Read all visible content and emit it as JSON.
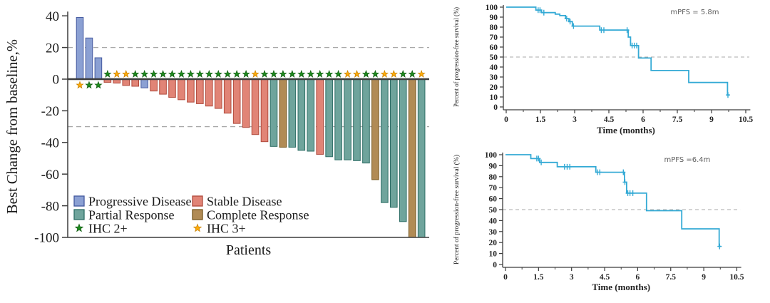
{
  "figure_background": "#ffffff",
  "colors": {
    "PD": {
      "fill": "#8BA0D3",
      "stroke": "#44599F"
    },
    "SD": {
      "fill": "#E18476",
      "stroke": "#B04A3C"
    },
    "PR": {
      "fill": "#6FA49C",
      "stroke": "#2E6E66"
    },
    "CR": {
      "fill": "#B18B55",
      "stroke": "#77571E"
    },
    "IHC2": {
      "fill": "#1E8C1E",
      "stroke": "#145F14"
    },
    "IHC3": {
      "fill": "#FFAD0A",
      "stroke": "#C98200"
    },
    "km_line": "#34AAD5",
    "dashed": "#A8A8A8",
    "axis": "#3C3C3C",
    "annotation_text": "#5E5E5E"
  },
  "chart_data": [
    {
      "type": "bar",
      "name": "waterfall",
      "xlabel": "Patients",
      "ylabel": "Best Change from baseline,%",
      "ylim": [
        -100,
        40
      ],
      "yticks": [
        40,
        20,
        0,
        -20,
        -40,
        -60,
        -80,
        -100
      ],
      "reference_lines": [
        20,
        -30
      ],
      "legend": [
        {
          "label": "Progressive Disease",
          "key": "PD",
          "marker": "box"
        },
        {
          "label": "Stable Disease",
          "key": "SD",
          "marker": "box"
        },
        {
          "label": "Partial Response",
          "key": "PR",
          "marker": "box"
        },
        {
          "label": "Complete Response",
          "key": "CR",
          "marker": "box"
        },
        {
          "label": "IHC 2+",
          "key": "IHC2",
          "marker": "star"
        },
        {
          "label": "IHC 3+",
          "key": "IHC3",
          "marker": "star"
        }
      ],
      "bars": [
        {
          "value": 39,
          "response": "PD",
          "ihc": "IHC3"
        },
        {
          "value": 26,
          "response": "PD",
          "ihc": "IHC2"
        },
        {
          "value": 13.5,
          "response": "PD",
          "ihc": "IHC2"
        },
        {
          "value": -2,
          "response": "SD",
          "ihc": "IHC2"
        },
        {
          "value": -2.5,
          "response": "SD",
          "ihc": "IHC3"
        },
        {
          "value": -4,
          "response": "SD",
          "ihc": "IHC3"
        },
        {
          "value": -4.5,
          "response": "SD",
          "ihc": "IHC2"
        },
        {
          "value": -5.5,
          "response": "PD",
          "ihc": "IHC2"
        },
        {
          "value": -7.5,
          "response": "SD",
          "ihc": "IHC2"
        },
        {
          "value": -9.5,
          "response": "SD",
          "ihc": "IHC2"
        },
        {
          "value": -11.5,
          "response": "SD",
          "ihc": "IHC2"
        },
        {
          "value": -13,
          "response": "SD",
          "ihc": "IHC2"
        },
        {
          "value": -14.5,
          "response": "SD",
          "ihc": "IHC2"
        },
        {
          "value": -15.5,
          "response": "SD",
          "ihc": "IHC2"
        },
        {
          "value": -17,
          "response": "SD",
          "ihc": "IHC2"
        },
        {
          "value": -18.5,
          "response": "SD",
          "ihc": "IHC2"
        },
        {
          "value": -21.5,
          "response": "SD",
          "ihc": "IHC2"
        },
        {
          "value": -28,
          "response": "SD",
          "ihc": "IHC2"
        },
        {
          "value": -30.5,
          "response": "SD",
          "ihc": "IHC2"
        },
        {
          "value": -35,
          "response": "SD",
          "ihc": "IHC3"
        },
        {
          "value": -39.5,
          "response": "SD",
          "ihc": "IHC2"
        },
        {
          "value": -42.5,
          "response": "PR",
          "ihc": "IHC2"
        },
        {
          "value": -43,
          "response": "CR",
          "ihc": "IHC2"
        },
        {
          "value": -43,
          "response": "PR",
          "ihc": "IHC2"
        },
        {
          "value": -45,
          "response": "PR",
          "ihc": "IHC2"
        },
        {
          "value": -45.5,
          "response": "PR",
          "ihc": "IHC2"
        },
        {
          "value": -47.5,
          "response": "SD",
          "ihc": "IHC2"
        },
        {
          "value": -49,
          "response": "PR",
          "ihc": "IHC2"
        },
        {
          "value": -51,
          "response": "PR",
          "ihc": "IHC2"
        },
        {
          "value": -51,
          "response": "PR",
          "ihc": "IHC3"
        },
        {
          "value": -51.5,
          "response": "PR",
          "ihc": "IHC3"
        },
        {
          "value": -53,
          "response": "PR",
          "ihc": "IHC2"
        },
        {
          "value": -63.5,
          "response": "CR",
          "ihc": "IHC2"
        },
        {
          "value": -78,
          "response": "PR",
          "ihc": "IHC3"
        },
        {
          "value": -81,
          "response": "PR",
          "ihc": "IHC3"
        },
        {
          "value": -90,
          "response": "PR",
          "ihc": "IHC2"
        },
        {
          "value": -100,
          "response": "CR",
          "ihc": "IHC2"
        },
        {
          "value": -100,
          "response": "PR",
          "ihc": "IHC3"
        }
      ]
    },
    {
      "type": "line",
      "name": "km_top",
      "annotation": "mPFS = 5.8m",
      "xlabel": "Time (months)",
      "ylabel": "Percent of progression-free survival (%)",
      "xlim": [
        0,
        10.5
      ],
      "ylim": [
        0,
        100
      ],
      "xticks": [
        0,
        1.5,
        3,
        4.5,
        6,
        7.5,
        9,
        10.5
      ],
      "yticks": [
        100,
        90,
        80,
        70,
        60,
        50,
        40,
        30,
        20,
        10,
        0
      ],
      "median_ref": 50,
      "start": [
        0,
        100
      ],
      "end_time": 9.78,
      "steps": [
        [
          1.3,
          97
        ],
        [
          1.55,
          94.5
        ],
        [
          2.15,
          93
        ],
        [
          2.35,
          91.5
        ],
        [
          2.6,
          88.5
        ],
        [
          2.75,
          85.5
        ],
        [
          2.9,
          81
        ],
        [
          4.1,
          77
        ],
        [
          5.35,
          70
        ],
        [
          5.45,
          61.5
        ],
        [
          5.8,
          49
        ],
        [
          6.35,
          36.5
        ],
        [
          8.0,
          24.5
        ],
        [
          9.7,
          12
        ]
      ],
      "censors": [
        [
          1.4,
          97
        ],
        [
          1.48,
          97
        ],
        [
          1.65,
          94.5
        ],
        [
          2.65,
          88.5
        ],
        [
          2.8,
          85.5
        ],
        [
          2.95,
          81
        ],
        [
          4.17,
          77
        ],
        [
          4.28,
          77
        ],
        [
          5.3,
          77
        ],
        [
          5.52,
          61.5
        ],
        [
          5.62,
          61.5
        ],
        [
          5.72,
          61.5
        ],
        [
          9.72,
          12
        ]
      ]
    },
    {
      "type": "line",
      "name": "km_bottom",
      "annotation": "mPFS =6.4m",
      "xlabel": "Time (months)",
      "ylabel": "Percent of progression-free survival (%)",
      "xlim": [
        0,
        10.5
      ],
      "ylim": [
        0,
        100
      ],
      "xticks": [
        0,
        1.5,
        3,
        4.5,
        6,
        7.5,
        9,
        10.5
      ],
      "yticks": [
        100,
        90,
        80,
        70,
        60,
        50,
        40,
        30,
        20,
        10,
        0
      ],
      "median_ref": 50,
      "start": [
        0,
        100
      ],
      "end_time": 9.78,
      "steps": [
        [
          1.15,
          96.5
        ],
        [
          1.55,
          93
        ],
        [
          2.35,
          89
        ],
        [
          4.1,
          84
        ],
        [
          5.4,
          75
        ],
        [
          5.5,
          65
        ],
        [
          6.4,
          49
        ],
        [
          8.0,
          32.5
        ],
        [
          9.7,
          16.5
        ]
      ],
      "censors": [
        [
          1.42,
          96.5
        ],
        [
          1.5,
          96.5
        ],
        [
          1.62,
          93
        ],
        [
          2.68,
          89
        ],
        [
          2.8,
          89
        ],
        [
          2.92,
          89
        ],
        [
          4.17,
          84
        ],
        [
          4.28,
          84
        ],
        [
          5.35,
          84
        ],
        [
          5.42,
          75
        ],
        [
          5.55,
          65
        ],
        [
          5.65,
          65
        ],
        [
          5.78,
          65
        ],
        [
          9.72,
          16.5
        ]
      ]
    }
  ]
}
